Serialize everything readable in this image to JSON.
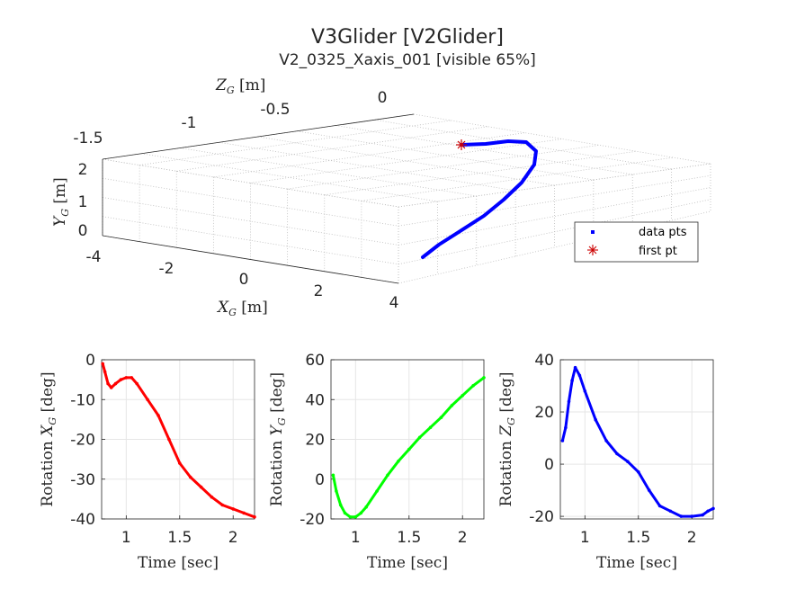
{
  "figure": {
    "title": "V3Glider [V2Glider]",
    "subtitle": "V2_0325_Xaxis_001 [visible 65%]"
  },
  "chart_data": [
    {
      "type": "scatter",
      "name": "3d-trajectory",
      "zlabel": {
        "sym": "Z",
        "sub": "G",
        "unit": " [m]"
      },
      "ylabel": {
        "sym": "Y",
        "sub": "G",
        "unit": " [m]"
      },
      "xlabel": {
        "sym": "X",
        "sub": "G",
        "unit": " [m]"
      },
      "z_ticks": [
        "-1.5",
        "-1",
        "-0.5",
        "0"
      ],
      "y_ticks": [
        "0",
        "1",
        "2"
      ],
      "x_ticks": [
        "-4",
        "-2",
        "0",
        "2",
        "4"
      ],
      "legend": {
        "placement": "lower-right",
        "entries": [
          {
            "label": "data pts",
            "color": "#0000ff",
            "marker": "point"
          },
          {
            "label": "first pt",
            "color": "#cc0000",
            "marker": "asterisk"
          }
        ]
      },
      "points_screen_estimate": [
        [
          513,
          161
        ],
        [
          540,
          160
        ],
        [
          565,
          157
        ],
        [
          585,
          158
        ],
        [
          596,
          168
        ],
        [
          594,
          183
        ],
        [
          580,
          203
        ],
        [
          560,
          222
        ],
        [
          538,
          240
        ],
        [
          510,
          258
        ],
        [
          488,
          272
        ],
        [
          470,
          286
        ]
      ],
      "first_point": [
        513,
        161
      ]
    },
    {
      "type": "scatter",
      "name": "rotation-x",
      "xlabel": "Time [sec]",
      "ylabel": {
        "pre": "Rotation ",
        "sym": "X",
        "sub": "G",
        "unit": " [deg]"
      },
      "xlim": [
        0.77,
        2.2
      ],
      "ylim": [
        -40,
        0
      ],
      "x_ticks": [
        "1",
        "1.5",
        "2"
      ],
      "y_ticks": [
        "0",
        "-10",
        "-20",
        "-30",
        "-40"
      ],
      "color": "#ff0000",
      "x": [
        0.78,
        0.8,
        0.83,
        0.86,
        0.9,
        0.95,
        1.0,
        1.05,
        1.1,
        1.2,
        1.3,
        1.4,
        1.5,
        1.6,
        1.7,
        1.8,
        1.9,
        2.0,
        2.1,
        2.2
      ],
      "y": [
        -1,
        -3,
        -6,
        -7,
        -6,
        -5,
        -4.5,
        -4.5,
        -6,
        -10,
        -14,
        -20,
        -26,
        -29.5,
        -32,
        -34.5,
        -36.5,
        -37.5,
        -38.5,
        -39.5
      ]
    },
    {
      "type": "scatter",
      "name": "rotation-y",
      "xlabel": "Time [sec]",
      "ylabel": {
        "pre": "Rotation ",
        "sym": "Y",
        "sub": "G",
        "unit": " [deg]"
      },
      "xlim": [
        0.77,
        2.2
      ],
      "ylim": [
        -20,
        60
      ],
      "x_ticks": [
        "1",
        "1.5",
        "2"
      ],
      "y_ticks": [
        "60",
        "40",
        "20",
        "0",
        "-20"
      ],
      "color": "#00ff00",
      "x": [
        0.79,
        0.82,
        0.86,
        0.9,
        0.95,
        1.0,
        1.05,
        1.1,
        1.2,
        1.3,
        1.4,
        1.5,
        1.6,
        1.7,
        1.8,
        1.9,
        2.0,
        2.1,
        2.2
      ],
      "y": [
        2,
        -6,
        -13,
        -17,
        -19,
        -19,
        -17,
        -14,
        -6,
        2,
        9,
        15,
        21,
        26,
        31,
        37,
        42,
        47,
        51
      ]
    },
    {
      "type": "scatter",
      "name": "rotation-z",
      "xlabel": "Time [sec]",
      "ylabel": {
        "pre": "Rotation ",
        "sym": "Z",
        "sub": "G",
        "unit": " [deg]"
      },
      "xlim": [
        0.77,
        2.2
      ],
      "ylim": [
        -21,
        40
      ],
      "x_ticks": [
        "1",
        "1.5",
        "2"
      ],
      "y_ticks": [
        "40",
        "20",
        "0",
        "-20"
      ],
      "color": "#0000ff",
      "x": [
        0.79,
        0.82,
        0.85,
        0.88,
        0.91,
        0.95,
        1.0,
        1.1,
        1.2,
        1.3,
        1.4,
        1.5,
        1.6,
        1.7,
        1.8,
        1.9,
        2.0,
        2.1,
        2.15,
        2.2
      ],
      "y": [
        9,
        14,
        24,
        32,
        37,
        34,
        28,
        17,
        9,
        4,
        1,
        -3,
        -10,
        -16,
        -18,
        -20,
        -20,
        -19.5,
        -18,
        -17
      ]
    }
  ]
}
